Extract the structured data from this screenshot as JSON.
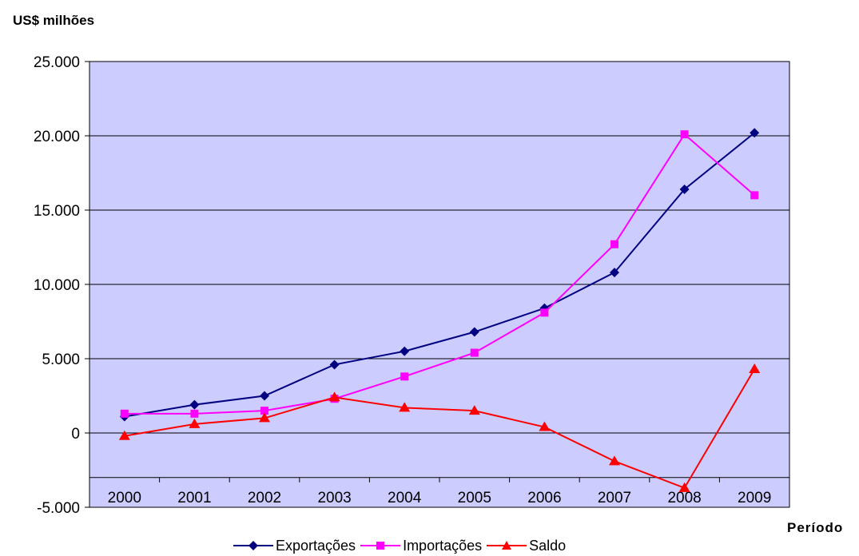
{
  "chart_data": {
    "type": "line",
    "ylabel": "US$ milhões",
    "xlabel": "Período",
    "categories": [
      "2000",
      "2001",
      "2002",
      "2003",
      "2004",
      "2005",
      "2006",
      "2007",
      "2008",
      "2009"
    ],
    "ylim": [
      -5000,
      25000
    ],
    "yticks": [
      -5000,
      0,
      5000,
      10000,
      15000,
      20000,
      25000
    ],
    "ytick_labels": [
      "-5.000",
      "0",
      "5.000",
      "10.000",
      "15.000",
      "20.000",
      "25.000"
    ],
    "grid": true,
    "legend_position": "bottom",
    "plot_background": "#ccccff",
    "series": [
      {
        "name": "Exportações",
        "color": "#000080",
        "marker": "diamond",
        "values": [
          1100,
          1900,
          2500,
          4600,
          5500,
          6800,
          8400,
          10800,
          16400,
          20200
        ]
      },
      {
        "name": "Importações",
        "color": "#ff00ff",
        "marker": "square",
        "values": [
          1300,
          1300,
          1500,
          2300,
          3800,
          5400,
          8100,
          12700,
          20100,
          16000
        ]
      },
      {
        "name": "Saldo",
        "color": "#ff0000",
        "marker": "triangle",
        "values": [
          -200,
          600,
          1000,
          2400,
          1700,
          1500,
          400,
          -1900,
          -3700,
          4300
        ]
      }
    ]
  }
}
